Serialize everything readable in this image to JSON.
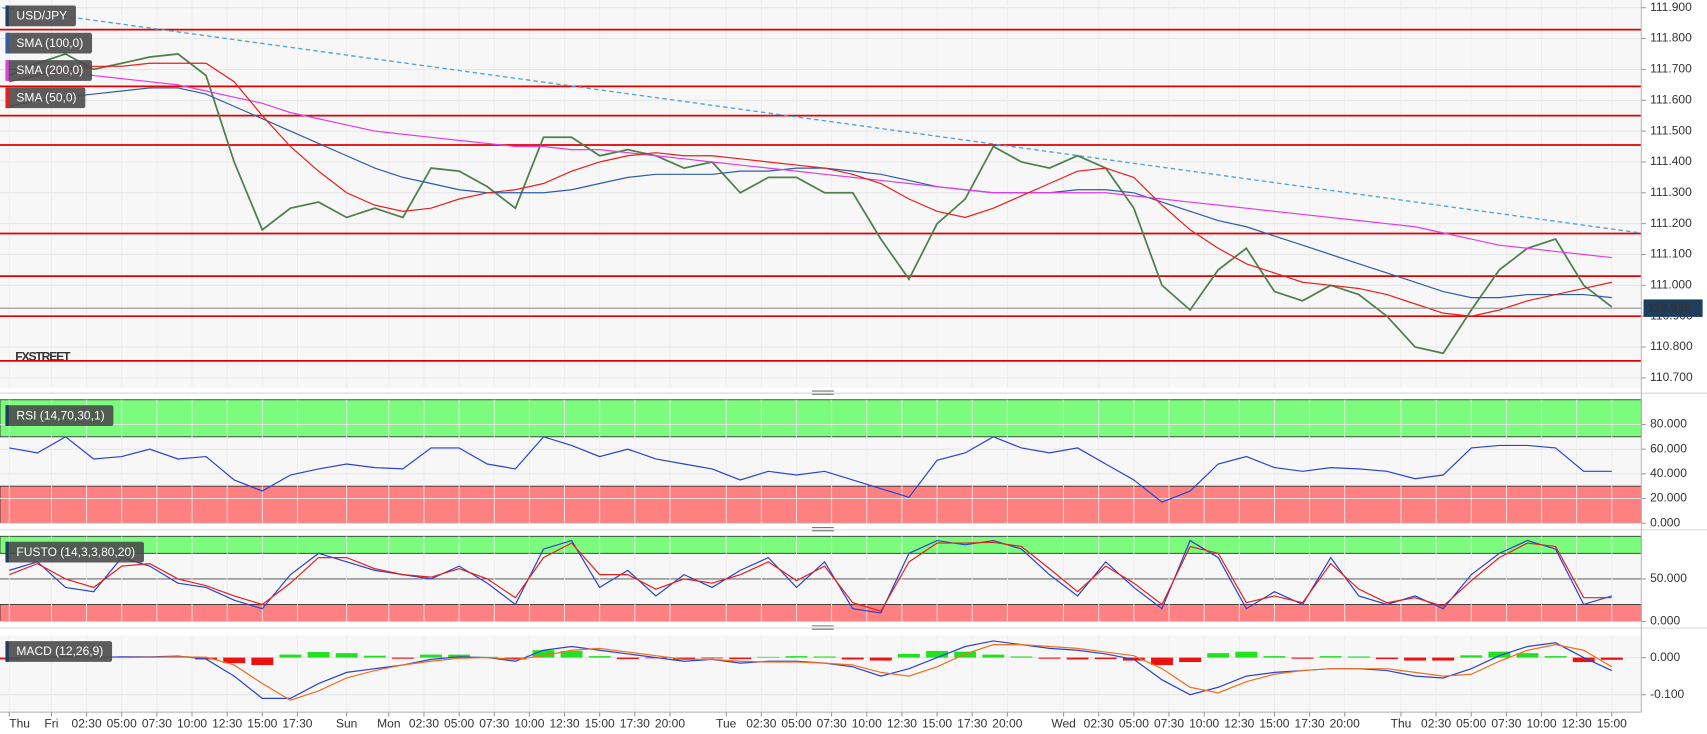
{
  "chart_data": [
    {
      "type": "line",
      "title": "USD/JPY",
      "watermark": "FXSTREET",
      "x": [
        -3,
        -1,
        1,
        3,
        5,
        7,
        9,
        11,
        13,
        15,
        17,
        19,
        21,
        23,
        25,
        27,
        29,
        31,
        33,
        35,
        37,
        39,
        41,
        43,
        45,
        47,
        49,
        51,
        53,
        55,
        57,
        59,
        61,
        63,
        65,
        67,
        69,
        71,
        73,
        75,
        77,
        79,
        81,
        83,
        85,
        87,
        89,
        91,
        93,
        95,
        97,
        99,
        101,
        103,
        105,
        107,
        109,
        111
      ],
      "xlim": [
        -3.66,
        113.1
      ],
      "xticks": [
        {
          "value": -3,
          "label": "Thu"
        },
        {
          "value": 0,
          "label": "Fri"
        },
        {
          "value": 2.5,
          "label": "02:30"
        },
        {
          "value": 5,
          "label": "05:00"
        },
        {
          "value": 7.5,
          "label": "07:30"
        },
        {
          "value": 10,
          "label": "10:00"
        },
        {
          "value": 12.5,
          "label": "12:30"
        },
        {
          "value": 15,
          "label": "15:00"
        },
        {
          "value": 17.5,
          "label": "17:30"
        },
        {
          "value": 21,
          "label": "Sun"
        },
        {
          "value": 24,
          "label": "Mon"
        },
        {
          "value": 26.5,
          "label": "02:30"
        },
        {
          "value": 29,
          "label": "05:00"
        },
        {
          "value": 31.5,
          "label": "07:30"
        },
        {
          "value": 34,
          "label": "10:00"
        },
        {
          "value": 36.5,
          "label": "12:30"
        },
        {
          "value": 39,
          "label": "15:00"
        },
        {
          "value": 41.5,
          "label": "17:30"
        },
        {
          "value": 44,
          "label": "20:00"
        },
        {
          "value": 48,
          "label": "Tue"
        },
        {
          "value": 50.5,
          "label": "02:30"
        },
        {
          "value": 53,
          "label": "05:00"
        },
        {
          "value": 55.5,
          "label": "07:30"
        },
        {
          "value": 58,
          "label": "10:00"
        },
        {
          "value": 60.5,
          "label": "12:30"
        },
        {
          "value": 63,
          "label": "15:00"
        },
        {
          "value": 65.5,
          "label": "17:30"
        },
        {
          "value": 68,
          "label": "20:00"
        },
        {
          "value": 72,
          "label": "Wed"
        },
        {
          "value": 74.5,
          "label": "02:30"
        },
        {
          "value": 77,
          "label": "05:00"
        },
        {
          "value": 79.5,
          "label": "07:30"
        },
        {
          "value": 82,
          "label": "10:00"
        },
        {
          "value": 84.5,
          "label": "12:30"
        },
        {
          "value": 87,
          "label": "15:00"
        },
        {
          "value": 89.5,
          "label": "17:30"
        },
        {
          "value": 92,
          "label": "20:00"
        },
        {
          "value": 96,
          "label": "Thu"
        },
        {
          "value": 98.5,
          "label": "02:30"
        },
        {
          "value": 101,
          "label": "05:00"
        },
        {
          "value": 103.5,
          "label": "07:30"
        },
        {
          "value": 106,
          "label": "10:00"
        },
        {
          "value": 108.5,
          "label": "12:30"
        },
        {
          "value": 111,
          "label": "15:00"
        }
      ],
      "ylim": [
        110.668,
        111.925
      ],
      "yticks": [
        {
          "value": 110.7,
          "label": "110.700"
        },
        {
          "value": 110.8,
          "label": "110.800"
        },
        {
          "value": 110.9,
          "label": "110.900"
        },
        {
          "value": 111.0,
          "label": "111.000"
        },
        {
          "value": 111.1,
          "label": "111.100"
        },
        {
          "value": 111.2,
          "label": "111.200"
        },
        {
          "value": 111.3,
          "label": "111.300"
        },
        {
          "value": 111.4,
          "label": "111.400"
        },
        {
          "value": 111.5,
          "label": "111.500"
        },
        {
          "value": 111.6,
          "label": "111.600"
        },
        {
          "value": 111.7,
          "label": "111.700"
        },
        {
          "value": 111.8,
          "label": "111.800"
        },
        {
          "value": 111.9,
          "label": "111.900"
        }
      ],
      "grid": true,
      "values": [
        111.68,
        111.72,
        111.75,
        111.7,
        111.72,
        111.74,
        111.75,
        111.68,
        111.4,
        111.18,
        111.25,
        111.27,
        111.22,
        111.25,
        111.22,
        111.38,
        111.37,
        111.32,
        111.25,
        111.48,
        111.48,
        111.42,
        111.44,
        111.42,
        111.38,
        111.4,
        111.3,
        111.35,
        111.35,
        111.3,
        111.3,
        111.15,
        111.02,
        111.2,
        111.28,
        111.45,
        111.4,
        111.38,
        111.42,
        111.38,
        111.25,
        111.0,
        110.92,
        111.05,
        111.12,
        110.98,
        110.95,
        111.0,
        110.97,
        110.9,
        110.8,
        110.78,
        110.92,
        111.05,
        111.12,
        111.15,
        111.0,
        110.93
      ],
      "color": "#4f7f4f",
      "series": [
        {
          "name": "SMA (100,0)",
          "color": "#2f5da8",
          "values": [
            111.58,
            111.6,
            111.61,
            111.62,
            111.63,
            111.64,
            111.64,
            111.62,
            111.58,
            111.54,
            111.5,
            111.46,
            111.42,
            111.38,
            111.35,
            111.33,
            111.31,
            111.3,
            111.3,
            111.3,
            111.31,
            111.33,
            111.35,
            111.36,
            111.36,
            111.36,
            111.37,
            111.37,
            111.38,
            111.38,
            111.37,
            111.36,
            111.34,
            111.32,
            111.31,
            111.3,
            111.3,
            111.3,
            111.31,
            111.31,
            111.3,
            111.27,
            111.24,
            111.21,
            111.19,
            111.16,
            111.13,
            111.1,
            111.07,
            111.04,
            111.01,
            110.98,
            110.96,
            110.96,
            110.97,
            110.97,
            110.97,
            110.96
          ]
        },
        {
          "name": "SMA (200,0)",
          "color": "#e23ee2",
          "values": [
            111.7,
            111.7,
            111.69,
            111.68,
            111.67,
            111.66,
            111.65,
            111.63,
            111.61,
            111.59,
            111.56,
            111.54,
            111.52,
            111.5,
            111.49,
            111.48,
            111.47,
            111.46,
            111.45,
            111.45,
            111.44,
            111.44,
            111.43,
            111.42,
            111.41,
            111.4,
            111.39,
            111.38,
            111.37,
            111.36,
            111.35,
            111.34,
            111.33,
            111.32,
            111.31,
            111.3,
            111.3,
            111.3,
            111.3,
            111.3,
            111.29,
            111.28,
            111.27,
            111.26,
            111.25,
            111.24,
            111.23,
            111.22,
            111.21,
            111.2,
            111.19,
            111.17,
            111.15,
            111.13,
            111.12,
            111.11,
            111.1,
            111.09
          ]
        },
        {
          "name": "SMA (50,0)",
          "color": "#e8201e",
          "values": [
            111.66,
            111.68,
            111.7,
            111.71,
            111.71,
            111.72,
            111.72,
            111.72,
            111.66,
            111.55,
            111.45,
            111.37,
            111.3,
            111.26,
            111.24,
            111.25,
            111.28,
            111.3,
            111.31,
            111.33,
            111.37,
            111.4,
            111.42,
            111.43,
            111.42,
            111.42,
            111.41,
            111.4,
            111.39,
            111.38,
            111.36,
            111.33,
            111.28,
            111.24,
            111.22,
            111.25,
            111.29,
            111.33,
            111.37,
            111.38,
            111.35,
            111.26,
            111.18,
            111.12,
            111.07,
            111.04,
            111.01,
            111.0,
            110.99,
            110.97,
            110.94,
            110.91,
            110.9,
            110.92,
            110.95,
            110.97,
            110.99,
            111.01
          ]
        }
      ],
      "levels": [
        111.829,
        111.645,
        111.55,
        111.455,
        111.168,
        111.03,
        110.9,
        110.755
      ],
      "level_color": "#e00000",
      "trendline": {
        "x": [
          -3.5,
          113
        ],
        "values": [
          111.9,
          111.17
        ],
        "color": "#4aa0e0"
      },
      "last_price": 110.926
    },
    {
      "type": "line",
      "title": "RSI (14,70,30,1)",
      "ylim": [
        0,
        100
      ],
      "yticks": [
        {
          "value": 0,
          "label": "0.000"
        },
        {
          "value": 20,
          "label": "20.000"
        },
        {
          "value": 40,
          "label": "40.000"
        },
        {
          "value": 60,
          "label": "60.000"
        },
        {
          "value": 80,
          "label": "80.000"
        }
      ],
      "grid": true,
      "bands": [
        {
          "from": 70,
          "to": 100,
          "color": "#7cfc7c"
        },
        {
          "from": 0,
          "to": 30,
          "color": "#ff8080"
        }
      ],
      "series": [
        {
          "color": "#2a44d0",
          "values": [
            61,
            57,
            70,
            52,
            54,
            60,
            52,
            54,
            35,
            26,
            39,
            44,
            48,
            45,
            44,
            61,
            61,
            48,
            44,
            70,
            63,
            54,
            60,
            52,
            48,
            44,
            35,
            42,
            39,
            42,
            35,
            28,
            21,
            51,
            57,
            70,
            61,
            57,
            61,
            48,
            35,
            17,
            26,
            48,
            54,
            45,
            42,
            45,
            44,
            42,
            36,
            39,
            61,
            63,
            63,
            61,
            42,
            42
          ]
        }
      ]
    },
    {
      "type": "line",
      "title": "FUSTO (14,3,3,80,20)",
      "ylim": [
        0,
        100
      ],
      "yticks": [
        {
          "value": 0,
          "label": "0.000"
        },
        {
          "value": 50,
          "label": "50.000"
        }
      ],
      "grid": true,
      "bands": [
        {
          "from": 80,
          "to": 100,
          "color": "#7cfc7c"
        },
        {
          "from": 0,
          "to": 20,
          "color": "#ff8080"
        }
      ],
      "series": [
        {
          "color": "#2a44d0",
          "values": [
            60,
            70,
            40,
            35,
            75,
            65,
            45,
            40,
            25,
            15,
            55,
            80,
            70,
            60,
            55,
            50,
            65,
            45,
            20,
            85,
            95,
            40,
            60,
            30,
            55,
            40,
            60,
            75,
            40,
            70,
            15,
            10,
            80,
            95,
            90,
            95,
            85,
            55,
            30,
            70,
            40,
            15,
            95,
            75,
            15,
            35,
            20,
            75,
            30,
            20,
            30,
            15,
            55,
            80,
            95,
            85,
            20,
            30
          ]
        },
        {
          "color": "#e8201e",
          "values": [
            55,
            68,
            50,
            40,
            65,
            68,
            50,
            42,
            30,
            20,
            45,
            75,
            75,
            62,
            55,
            52,
            62,
            50,
            28,
            75,
            92,
            55,
            55,
            38,
            50,
            45,
            55,
            70,
            48,
            65,
            22,
            12,
            70,
            92,
            92,
            93,
            88,
            62,
            35,
            65,
            45,
            20,
            88,
            80,
            22,
            30,
            22,
            68,
            38,
            22,
            28,
            18,
            48,
            75,
            92,
            88,
            28,
            28
          ]
        }
      ]
    },
    {
      "type": "bar",
      "title": "MACD (12,26,9)",
      "ylim": [
        -0.147,
        0.059
      ],
      "yticks": [
        {
          "value": -0.1,
          "label": "-0.100"
        },
        {
          "value": 0,
          "label": "0.000"
        }
      ],
      "grid": true,
      "values": [
        -0.005,
        0.002,
        0.004,
        0.002,
        0.003,
        0.002,
        0.004,
        -0.005,
        -0.015,
        -0.02,
        0.008,
        0.015,
        0.012,
        0.005,
        -0.003,
        0.008,
        0.008,
        0.002,
        -0.005,
        0.02,
        0.018,
        0.004,
        -0.004,
        -0.002,
        -0.006,
        -0.002,
        -0.004,
        0.002,
        0.004,
        0.003,
        -0.005,
        -0.008,
        0.01,
        0.018,
        0.016,
        0.008,
        0.003,
        -0.003,
        -0.005,
        -0.004,
        -0.008,
        -0.02,
        -0.012,
        0.012,
        0.016,
        0.004,
        -0.003,
        0.004,
        0.003,
        -0.004,
        -0.008,
        -0.008,
        0.006,
        0.016,
        0.012,
        0.004,
        -0.012,
        -0.006
      ],
      "up_color": "#22e022",
      "down_color": "#ee1111",
      "series": [
        {
          "color": "#2a44d0",
          "values": [
            0,
            0,
            0.002,
            0,
            0.002,
            0.002,
            0.004,
            -0.004,
            -0.05,
            -0.11,
            -0.11,
            -0.07,
            -0.04,
            -0.03,
            -0.02,
            -0.005,
            0.002,
            0,
            -0.01,
            0.02,
            0.03,
            0.02,
            0.01,
            0,
            -0.01,
            -0.005,
            -0.015,
            -0.01,
            -0.01,
            -0.015,
            -0.025,
            -0.05,
            -0.03,
            0,
            0.03,
            0.045,
            0.035,
            0.025,
            0.02,
            0.01,
            -0.005,
            -0.06,
            -0.1,
            -0.08,
            -0.05,
            -0.04,
            -0.035,
            -0.03,
            -0.03,
            -0.035,
            -0.05,
            -0.055,
            -0.03,
            0.005,
            0.03,
            0.04,
            0,
            -0.035
          ]
        },
        {
          "color": "#f07020",
          "values": [
            0,
            0,
            0,
            0,
            0,
            0.001,
            0.002,
            0.001,
            -0.02,
            -0.07,
            -0.115,
            -0.09,
            -0.055,
            -0.035,
            -0.02,
            -0.01,
            -0.002,
            0,
            -0.005,
            0.005,
            0.02,
            0.025,
            0.015,
            0.005,
            -0.005,
            -0.005,
            -0.01,
            -0.012,
            -0.012,
            -0.015,
            -0.02,
            -0.04,
            -0.05,
            -0.025,
            0.01,
            0.035,
            0.035,
            0.03,
            0.025,
            0.015,
            0.005,
            -0.03,
            -0.08,
            -0.095,
            -0.065,
            -0.045,
            -0.035,
            -0.03,
            -0.03,
            -0.03,
            -0.04,
            -0.05,
            -0.045,
            -0.01,
            0.02,
            0.035,
            0.02,
            -0.025
          ]
        }
      ]
    }
  ]
}
